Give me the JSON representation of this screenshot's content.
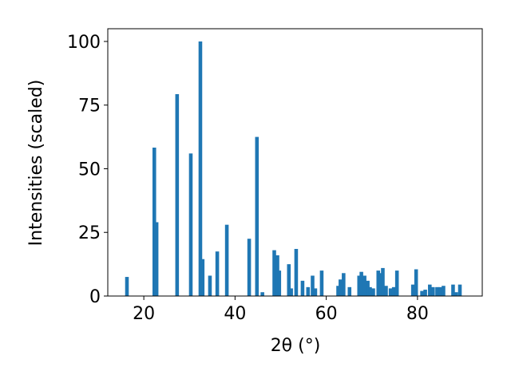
{
  "chart_data": {
    "type": "bar",
    "xlabel": "2θ (°)",
    "ylabel": "Intensities (scaled)",
    "x": [
      16.3,
      22.3,
      22.8,
      27.3,
      30.3,
      32.4,
      32.9,
      34.5,
      36.1,
      38.2,
      43.1,
      44.8,
      46.0,
      48.6,
      49.3,
      49.7,
      51.8,
      52.3,
      53.4,
      54.8,
      56.0,
      57.0,
      57.6,
      59.0,
      62.6,
      63.1,
      63.8,
      65.1,
      67.2,
      67.7,
      68.4,
      69.1,
      69.6,
      70.3,
      71.4,
      71.9,
      72.4,
      73.1,
      74.1,
      74.8,
      75.5,
      79.0,
      79.7,
      81.0,
      81.7,
      82.7,
      83.4,
      84.3,
      85.0,
      85.7,
      87.8,
      88.5,
      89.3
    ],
    "values": [
      7.5,
      58.3,
      29,
      79.3,
      56,
      100,
      14.5,
      8,
      17.5,
      28,
      22.5,
      62.5,
      1.5,
      18,
      16,
      10,
      12.5,
      3,
      18.5,
      6,
      3.5,
      8,
      3,
      10,
      4,
      6.5,
      9,
      3.5,
      8,
      9.5,
      8,
      6,
      3.5,
      3,
      10,
      9,
      11,
      4,
      3,
      3.5,
      10,
      4.5,
      10.5,
      2,
      2.5,
      4.5,
      3.5,
      3.5,
      3.5,
      4,
      4.5,
      1.5,
      4.5
    ],
    "color": "#1f77b4",
    "xlim": [
      12.1,
      94.2
    ],
    "xticks": [
      20,
      40,
      60,
      80
    ],
    "ylim": [
      0,
      105
    ],
    "yticks": [
      0,
      25,
      50,
      75,
      100
    ]
  }
}
